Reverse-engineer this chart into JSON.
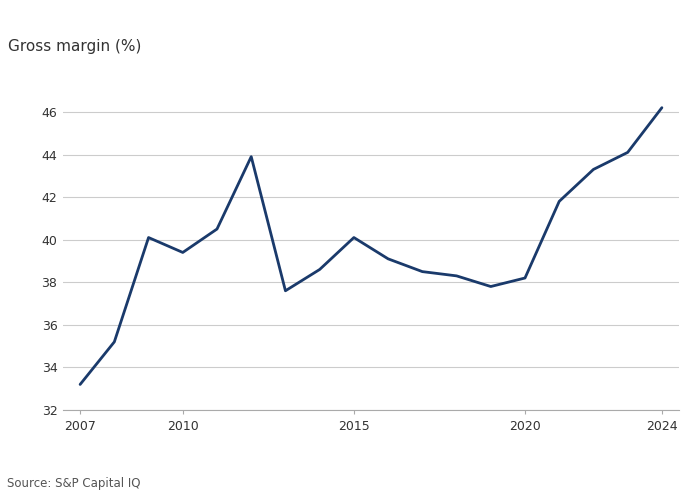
{
  "years": [
    2007,
    2008,
    2009,
    2010,
    2011,
    2012,
    2013,
    2014,
    2015,
    2016,
    2017,
    2018,
    2019,
    2020,
    2021,
    2022,
    2023,
    2024
  ],
  "values": [
    33.2,
    35.2,
    40.1,
    39.4,
    40.5,
    43.9,
    37.6,
    38.6,
    40.1,
    39.1,
    38.5,
    38.3,
    37.8,
    38.2,
    41.8,
    43.3,
    44.1,
    46.2
  ],
  "line_color": "#1a3a6b",
  "line_width": 2.0,
  "ylabel": "Gross margin (%)",
  "source": "Source: S&P Capital IQ",
  "ylim": [
    32,
    47.5
  ],
  "yticks": [
    32,
    34,
    36,
    38,
    40,
    42,
    44,
    46
  ],
  "xlim": [
    2006.5,
    2024.5
  ],
  "xticks": [
    2007,
    2010,
    2015,
    2020,
    2024
  ],
  "background_color": "#ffffff",
  "grid_color": "#cccccc",
  "tick_label_fontsize": 9,
  "ylabel_fontsize": 11,
  "source_fontsize": 8.5
}
